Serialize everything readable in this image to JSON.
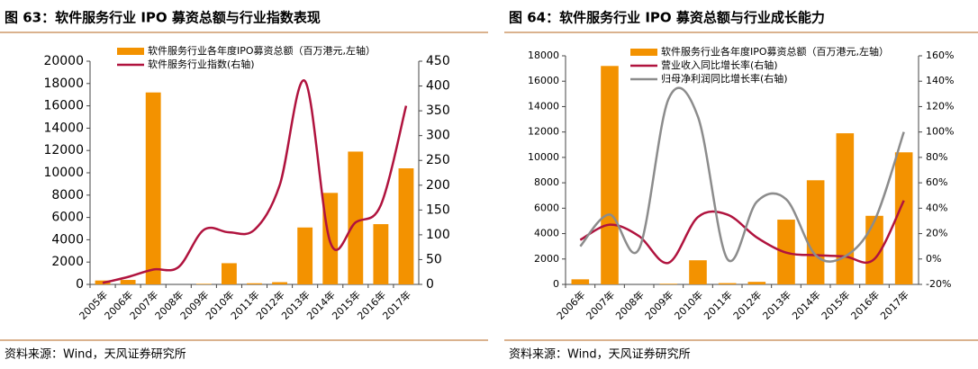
{
  "chart_data": [
    {
      "type": "combo",
      "title": "图 63：软件服务行业 IPO 募资总额与行业指数表现",
      "source": "资料来源：Wind，天风证券研究所",
      "categories": [
        "2005年",
        "2006年",
        "2007年",
        "2008年",
        "2009年",
        "2010年",
        "2011年",
        "2012年",
        "2013年",
        "2014年",
        "2015年",
        "2016年",
        "2017年"
      ],
      "series": [
        {
          "name": "软件服务行业各年度IPO募资总额（百万港元,左轴）",
          "kind": "bar",
          "axis": "y",
          "color": "#f39200",
          "values": [
            350,
            400,
            17200,
            0,
            50,
            1900,
            100,
            200,
            5100,
            8200,
            11900,
            5400,
            10400
          ]
        },
        {
          "name": "软件服务行业指数(右轴)",
          "kind": "line",
          "axis": "y2",
          "color": "#b0133e",
          "values": [
            3,
            15,
            30,
            35,
            110,
            105,
            110,
            200,
            410,
            85,
            125,
            160,
            360
          ]
        }
      ],
      "ylim": [
        0,
        20000
      ],
      "yticks": [
        0,
        2000,
        4000,
        6000,
        8000,
        10000,
        12000,
        14000,
        16000,
        18000,
        20000
      ],
      "y2lim": [
        0,
        450
      ],
      "y2ticks": [
        0,
        50,
        100,
        150,
        200,
        250,
        300,
        350,
        400,
        450
      ]
    },
    {
      "type": "combo",
      "title": "图 64：软件服务行业 IPO 募资总额与行业成长能力",
      "source": "资料来源：Wind，天风证券研究所",
      "categories": [
        "2006年",
        "2007年",
        "2008年",
        "2009年",
        "2010年",
        "2011年",
        "2012年",
        "2013年",
        "2014年",
        "2015年",
        "2016年",
        "2017年"
      ],
      "series": [
        {
          "name": "软件服务行业各年度IPO募资总额（百万港元,左轴）",
          "kind": "bar",
          "axis": "y",
          "color": "#f39200",
          "values": [
            400,
            17200,
            0,
            50,
            1900,
            100,
            200,
            5100,
            8200,
            11900,
            5400,
            10400
          ]
        },
        {
          "name": "营业收入同比增长率(右轴)",
          "kind": "line",
          "axis": "y2",
          "color": "#b0133e",
          "values": [
            15,
            27,
            18,
            -3,
            33,
            35,
            17,
            5,
            3,
            2,
            0,
            46
          ]
        },
        {
          "name": "归母净利润同比增长率(右轴)",
          "kind": "line",
          "axis": "y2",
          "color": "#8c8c8c",
          "values": [
            10,
            35,
            8,
            126,
            112,
            0,
            45,
            47,
            3,
            2,
            30,
            100
          ]
        }
      ],
      "ylim": [
        0,
        18000
      ],
      "yticks": [
        0,
        2000,
        4000,
        6000,
        8000,
        10000,
        12000,
        14000,
        16000,
        18000
      ],
      "y2lim": [
        -20,
        160
      ],
      "y2ticks": [
        {
          "value": -20,
          "label": "-20%"
        },
        {
          "value": 0,
          "label": "0%"
        },
        {
          "value": 20,
          "label": "20%"
        },
        {
          "value": 40,
          "label": "40%"
        },
        {
          "value": 60,
          "label": "60%"
        },
        {
          "value": 80,
          "label": "80%"
        },
        {
          "value": 100,
          "label": "100%"
        },
        {
          "value": 120,
          "label": "120%"
        },
        {
          "value": 140,
          "label": "140%"
        },
        {
          "value": 160,
          "label": "160%"
        }
      ]
    }
  ]
}
